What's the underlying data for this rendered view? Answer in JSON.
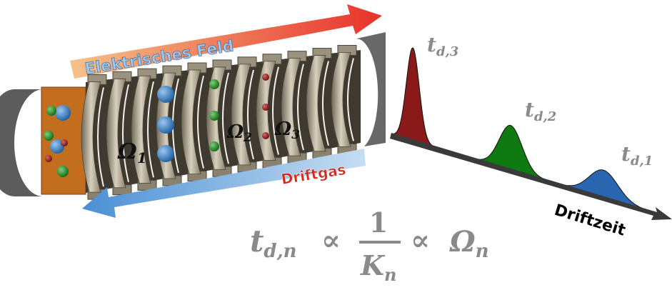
{
  "field_label": "Elektrisches Feld",
  "gas_label": "Driftgas",
  "time_axis_label": "Driftzeit",
  "omega_labels": [
    {
      "symbol": "Ω",
      "sub": "1"
    },
    {
      "symbol": "Ω",
      "sub": "2"
    },
    {
      "symbol": "Ω",
      "sub": "3"
    }
  ],
  "peak_labels": [
    {
      "symbol": "t",
      "sub": "d,3"
    },
    {
      "symbol": "t",
      "sub": "d,2"
    },
    {
      "symbol": "t",
      "sub": "d,1"
    }
  ],
  "formula": {
    "lhs": "t",
    "lhs_sub": "d,n",
    "prop1": "∝",
    "numerator": "1",
    "denominator": "K",
    "denominator_sub": "n",
    "prop2": "∝",
    "rhs": "Ω",
    "rhs_sub": "n"
  }
}
